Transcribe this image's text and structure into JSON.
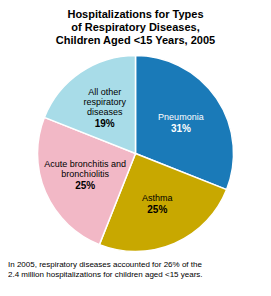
{
  "chart_data": {
    "type": "pie",
    "title": "Hospitalizations for Types\nof Respiratory Diseases,\nChildren Aged <15 Years, 2005",
    "annotations": [
      "In 2005, respiratory diseases accounted for 26% of the\n2.4 million hospitalizations for children aged <15 years."
    ],
    "categories": [
      "Pneumonia",
      "Asthma",
      "Acute bronchitis and\nbronchiolitis",
      "All other\nrespiratory\ndiseases"
    ],
    "values": [
      31,
      25,
      25,
      19
    ],
    "value_labels": [
      "31%",
      "25%",
      "25%",
      "19%"
    ],
    "colors": [
      "#1a7ab8",
      "#c8a800",
      "#f2b8c6",
      "#a8dce8"
    ],
    "data_labels": true
  }
}
